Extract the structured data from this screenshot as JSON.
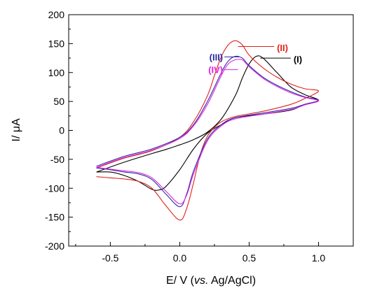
{
  "chart_data": {
    "type": "line",
    "title": "",
    "xlabel": "E/ V (vs. Ag/AgCl)",
    "xlabel_parts": {
      "prefix": "E/ V (",
      "italic": "vs.",
      "suffix": " Ag/AgCl)"
    },
    "ylabel": "I/ μA",
    "xlim": [
      -0.8,
      1.25
    ],
    "ylim": [
      -200,
      200
    ],
    "x_ticks": [
      -0.5,
      0.0,
      0.5,
      1.0
    ],
    "x_tick_labels": [
      "-0.5",
      "0.0",
      "0.5",
      "1.0"
    ],
    "y_ticks": [
      -200,
      -150,
      -100,
      -50,
      0,
      50,
      100,
      150,
      200
    ],
    "y_tick_labels": [
      "-200",
      "-150",
      "-100",
      "-50",
      "0",
      "50",
      "100",
      "150",
      "200"
    ],
    "grid": false,
    "series": [
      {
        "name": "(I)",
        "color": "#000000",
        "x": [
          -0.6,
          -0.4,
          -0.2,
          -0.1,
          0.0,
          0.1,
          0.2,
          0.3,
          0.4,
          0.45,
          0.5,
          0.55,
          0.6,
          0.7,
          0.8,
          0.9,
          1.0,
          0.9,
          0.8,
          0.6,
          0.4,
          0.3,
          0.2,
          0.1,
          0.0,
          -0.1,
          -0.15,
          -0.2,
          -0.3,
          -0.4,
          -0.5,
          -0.6
        ],
        "y": [
          -72,
          -55,
          -40,
          -33,
          -25,
          -16,
          -3,
          20,
          60,
          90,
          115,
          128,
          125,
          100,
          75,
          62,
          52,
          45,
          35,
          28,
          22,
          10,
          -5,
          -32,
          -68,
          -97,
          -103,
          -102,
          -88,
          -78,
          -72,
          -72
        ]
      },
      {
        "name": "(II)",
        "color": "#e0201c",
        "x": [
          -0.6,
          -0.4,
          -0.2,
          0.0,
          0.1,
          0.2,
          0.25,
          0.3,
          0.35,
          0.4,
          0.45,
          0.5,
          0.6,
          0.7,
          0.8,
          0.9,
          1.0,
          0.9,
          0.8,
          0.6,
          0.4,
          0.3,
          0.25,
          0.2,
          0.15,
          0.1,
          0.05,
          0.0,
          -0.1,
          -0.2,
          -0.3,
          -0.4,
          -0.5,
          -0.6
        ],
        "y": [
          -65,
          -48,
          -35,
          -12,
          15,
          60,
          95,
          128,
          148,
          155,
          148,
          130,
          108,
          92,
          80,
          72,
          68,
          55,
          45,
          33,
          24,
          15,
          5,
          -10,
          -40,
          -90,
          -135,
          -155,
          -130,
          -100,
          -88,
          -84,
          -82,
          -80
        ]
      },
      {
        "name": "(III)",
        "color": "#2a2aa6",
        "x": [
          -0.6,
          -0.4,
          -0.2,
          0.0,
          0.1,
          0.2,
          0.3,
          0.35,
          0.4,
          0.45,
          0.5,
          0.6,
          0.7,
          0.8,
          0.9,
          1.0,
          0.9,
          0.8,
          0.6,
          0.4,
          0.3,
          0.2,
          0.1,
          0.05,
          0.0,
          -0.1,
          -0.2,
          -0.3,
          -0.4,
          -0.5,
          -0.6
        ],
        "y": [
          -62,
          -45,
          -32,
          -12,
          10,
          50,
          100,
          120,
          128,
          125,
          112,
          92,
          78,
          67,
          58,
          52,
          45,
          38,
          30,
          22,
          10,
          -15,
          -70,
          -110,
          -132,
          -110,
          -85,
          -75,
          -72,
          -68,
          -65
        ]
      },
      {
        "name": "(IV)",
        "color": "#e020e0",
        "x": [
          -0.6,
          -0.4,
          -0.2,
          0.0,
          0.1,
          0.2,
          0.3,
          0.35,
          0.4,
          0.45,
          0.5,
          0.6,
          0.7,
          0.8,
          0.9,
          1.0,
          0.9,
          0.8,
          0.6,
          0.4,
          0.3,
          0.2,
          0.1,
          0.05,
          0.0,
          -0.1,
          -0.2,
          -0.3,
          -0.4,
          -0.5,
          -0.6
        ],
        "y": [
          -64,
          -47,
          -34,
          -14,
          8,
          45,
          95,
          115,
          122,
          122,
          110,
          90,
          76,
          65,
          57,
          51,
          44,
          36,
          28,
          20,
          8,
          -18,
          -75,
          -112,
          -127,
          -105,
          -82,
          -73,
          -70,
          -67,
          -64
        ]
      }
    ],
    "annotations": [
      {
        "label": "(II)",
        "series": "(II)",
        "color": "#e0201c",
        "text_x": 0.7,
        "text_y": 143,
        "anchor_x": 0.42,
        "anchor_y": 145
      },
      {
        "label": "(I)",
        "series": "(I)",
        "color": "#000000",
        "text_x": 0.82,
        "text_y": 123,
        "anchor_x": 0.58,
        "anchor_y": 125
      },
      {
        "label": "(III)",
        "series": "(III)",
        "color": "#2a2aa6",
        "text_x": 0.15,
        "text_y": 127,
        "anchor_x": 0.43,
        "anchor_y": 127
      },
      {
        "label": "(IV)",
        "series": "(IV)",
        "color": "#e020e0",
        "text_x": 0.15,
        "text_y": 105,
        "anchor_x": 0.42,
        "anchor_y": 105
      }
    ]
  }
}
